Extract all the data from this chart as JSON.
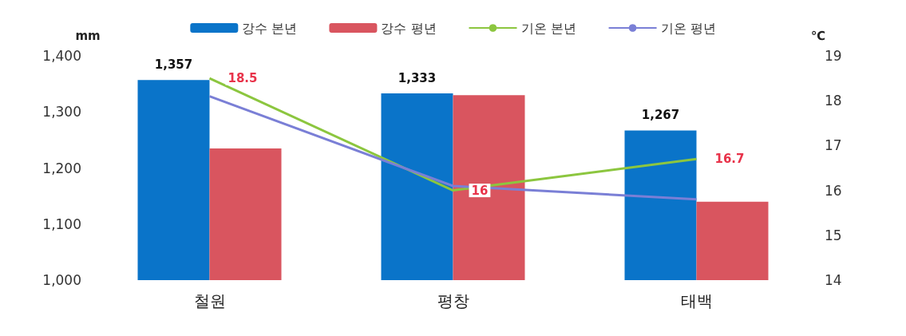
{
  "chart_data": {
    "type": "bar",
    "categories": [
      "철원",
      "평창",
      "태백"
    ],
    "ylabel": "mm",
    "y2label": "℃",
    "ylim": [
      1000,
      1400
    ],
    "yticks": [
      {
        "value": 1000,
        "label": "1,000"
      },
      {
        "value": 1100,
        "label": "1,100"
      },
      {
        "value": 1200,
        "label": "1,200"
      },
      {
        "value": 1300,
        "label": "1,300"
      },
      {
        "value": 1400,
        "label": "1,400"
      }
    ],
    "y2lim": [
      14,
      19
    ],
    "y2ticks": [
      14,
      15,
      16,
      17,
      18,
      19
    ],
    "series": [
      {
        "name": "강수 본년",
        "color": "#0a74c9",
        "values": [
          1357,
          1333,
          1267
        ],
        "value_labels": [
          "1,357",
          "1,333",
          "1,267"
        ]
      },
      {
        "name": "강수 평년",
        "color": "#d9555f",
        "values": [
          1235,
          1330,
          1140
        ]
      },
      {
        "name": "기온 본년",
        "type": "line",
        "axis": "y2",
        "color": "#8cc63f",
        "values": [
          18.5,
          16,
          16.7
        ],
        "value_labels": [
          "18.5",
          "16",
          "16.7"
        ]
      },
      {
        "name": "기온 평년",
        "type": "line",
        "axis": "y2",
        "color": "#7a7fd6",
        "values": [
          18.1,
          16.1,
          15.8
        ]
      }
    ],
    "legend": "top",
    "grid": false,
    "marker": "none"
  }
}
